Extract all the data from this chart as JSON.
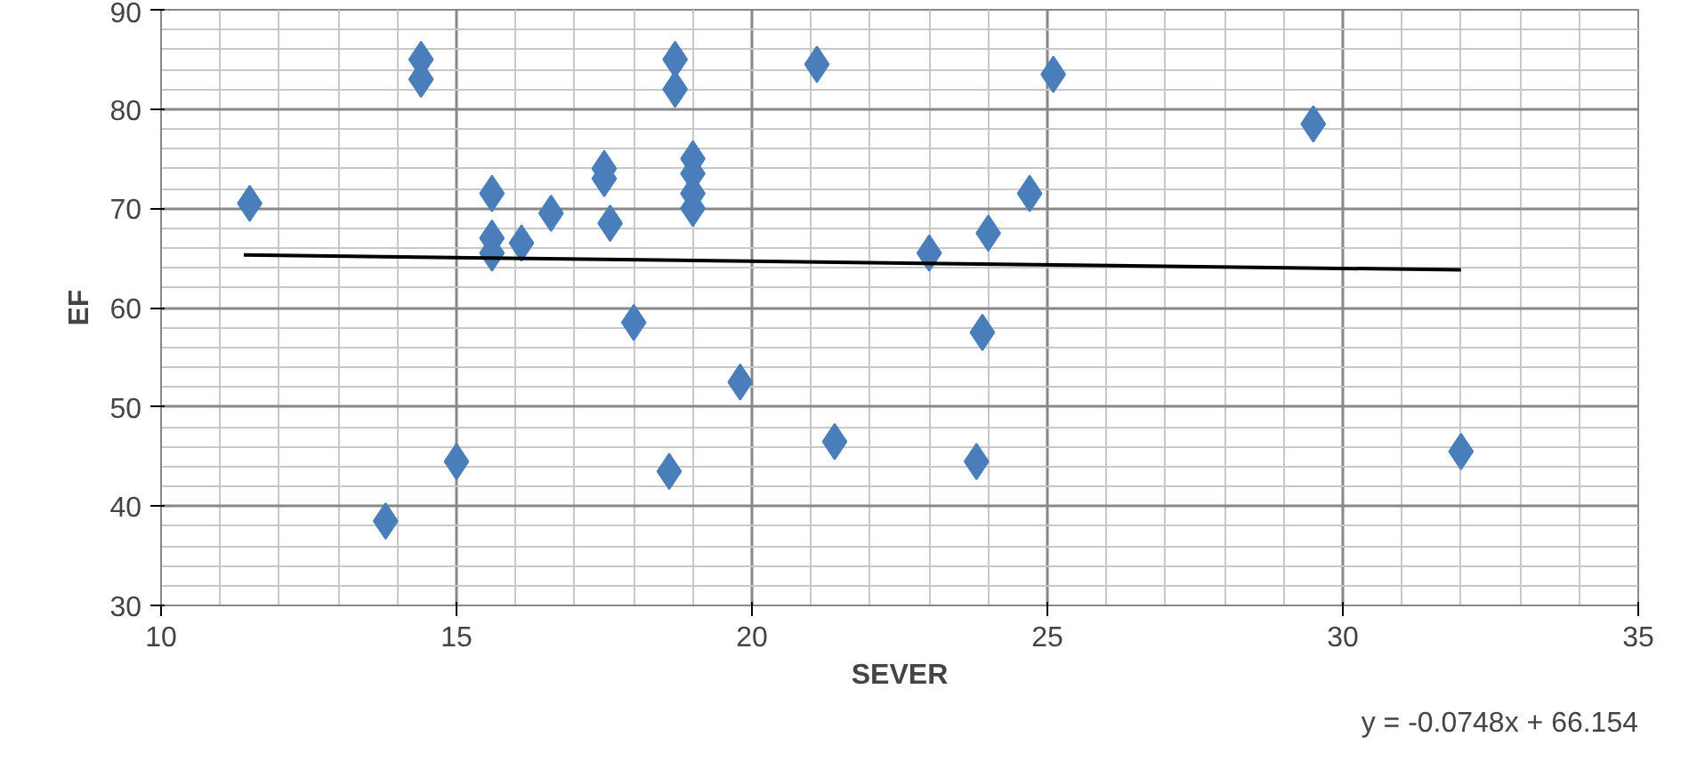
{
  "chart_data": {
    "type": "scatter",
    "xlabel": "SEVER",
    "ylabel": "EF",
    "xlim": [
      10,
      35
    ],
    "xticks": [
      10,
      15,
      20,
      25,
      30,
      35
    ],
    "ylim": [
      30,
      90
    ],
    "yticks": [
      30,
      40,
      50,
      60,
      70,
      80,
      90
    ],
    "grid": true,
    "marker": "diamond",
    "series": [
      {
        "color": "#4a7ebb",
        "x": [
          11.5,
          13.8,
          14.4,
          14.4,
          15.0,
          15.6,
          15.6,
          15.6,
          16.1,
          16.6,
          17.5,
          17.5,
          17.6,
          18.0,
          18.6,
          18.7,
          18.7,
          19.0,
          19.0,
          19.0,
          19.0,
          19.8,
          21.1,
          21.4,
          23.0,
          23.8,
          23.9,
          24.0,
          24.7,
          25.1,
          29.5,
          32.0
        ],
        "values": [
          70.5,
          38.5,
          85,
          83,
          44.5,
          71.5,
          67,
          65.5,
          66.5,
          69.5,
          74,
          73,
          68.5,
          58.5,
          43.5,
          85,
          82,
          75,
          73.5,
          71.5,
          70,
          52.5,
          84.5,
          46.5,
          65.5,
          44.5,
          57.5,
          67.5,
          71.5,
          83.5,
          78.5,
          45.5
        ]
      },
      {
        "type": "line",
        "marker": "none",
        "color": "#000000",
        "x": [
          11.4,
          32.0
        ],
        "values": [
          65.3,
          63.8
        ]
      }
    ],
    "annotations": [
      "y = -0.0748x + 66.154"
    ]
  }
}
